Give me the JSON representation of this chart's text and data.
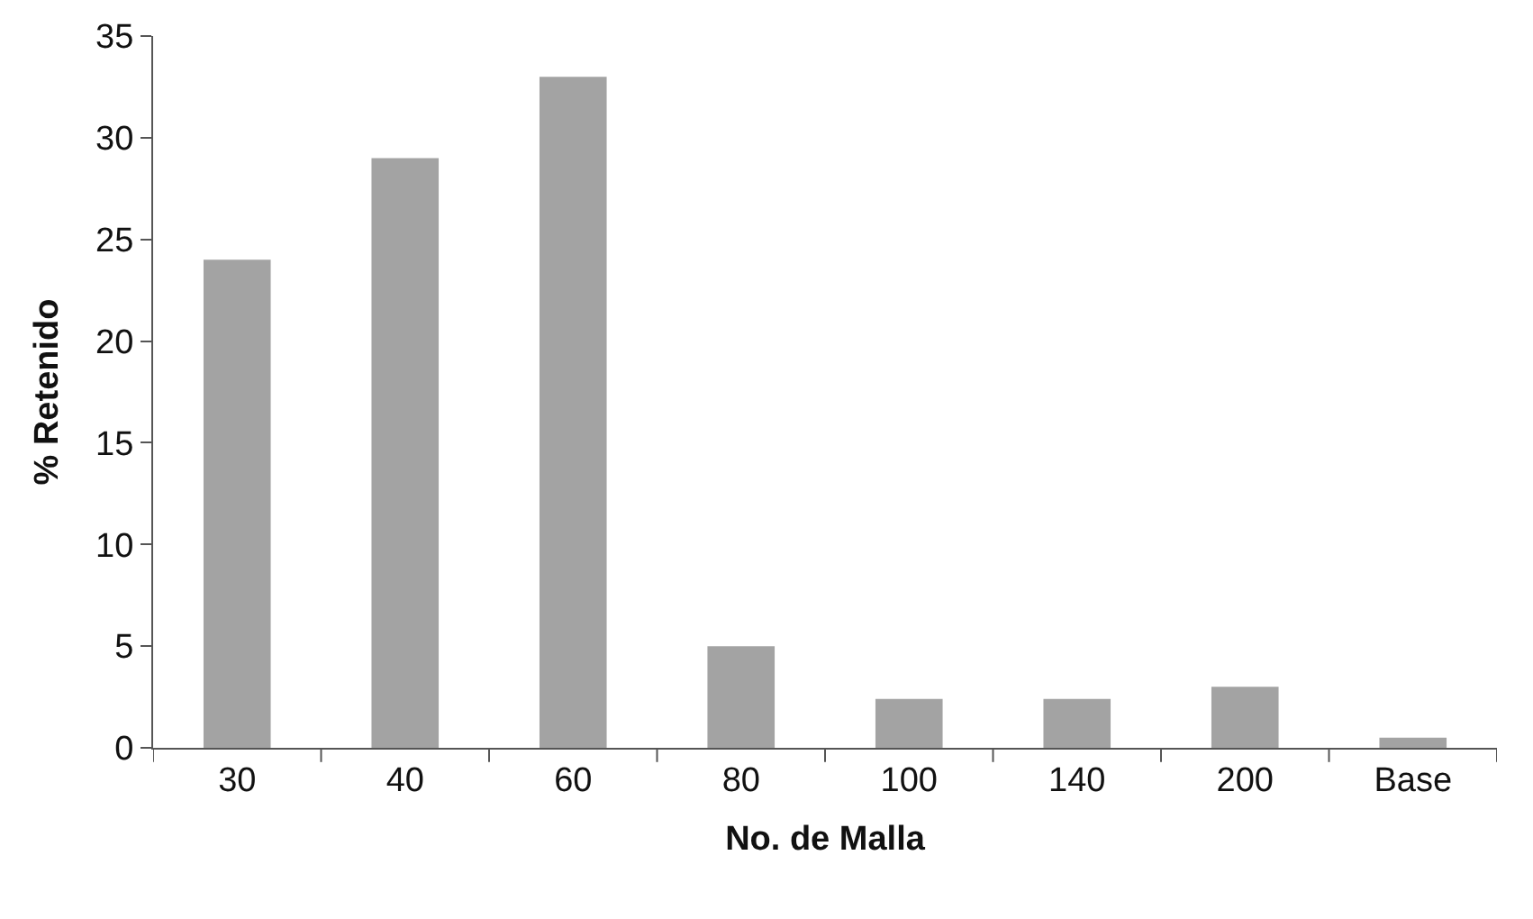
{
  "chart_data": {
    "type": "bar",
    "xlabel": "No. de Malla",
    "ylabel": "% Retenido",
    "categories": [
      "30",
      "40",
      "60",
      "80",
      "100",
      "140",
      "200",
      "Base"
    ],
    "values": [
      24,
      29,
      33,
      5,
      2.4,
      2.4,
      3,
      0.5
    ],
    "color": "#a3a3a3",
    "ylim": [
      0,
      35
    ],
    "yticks": [
      0,
      5,
      10,
      15,
      20,
      25,
      30,
      35
    ]
  }
}
